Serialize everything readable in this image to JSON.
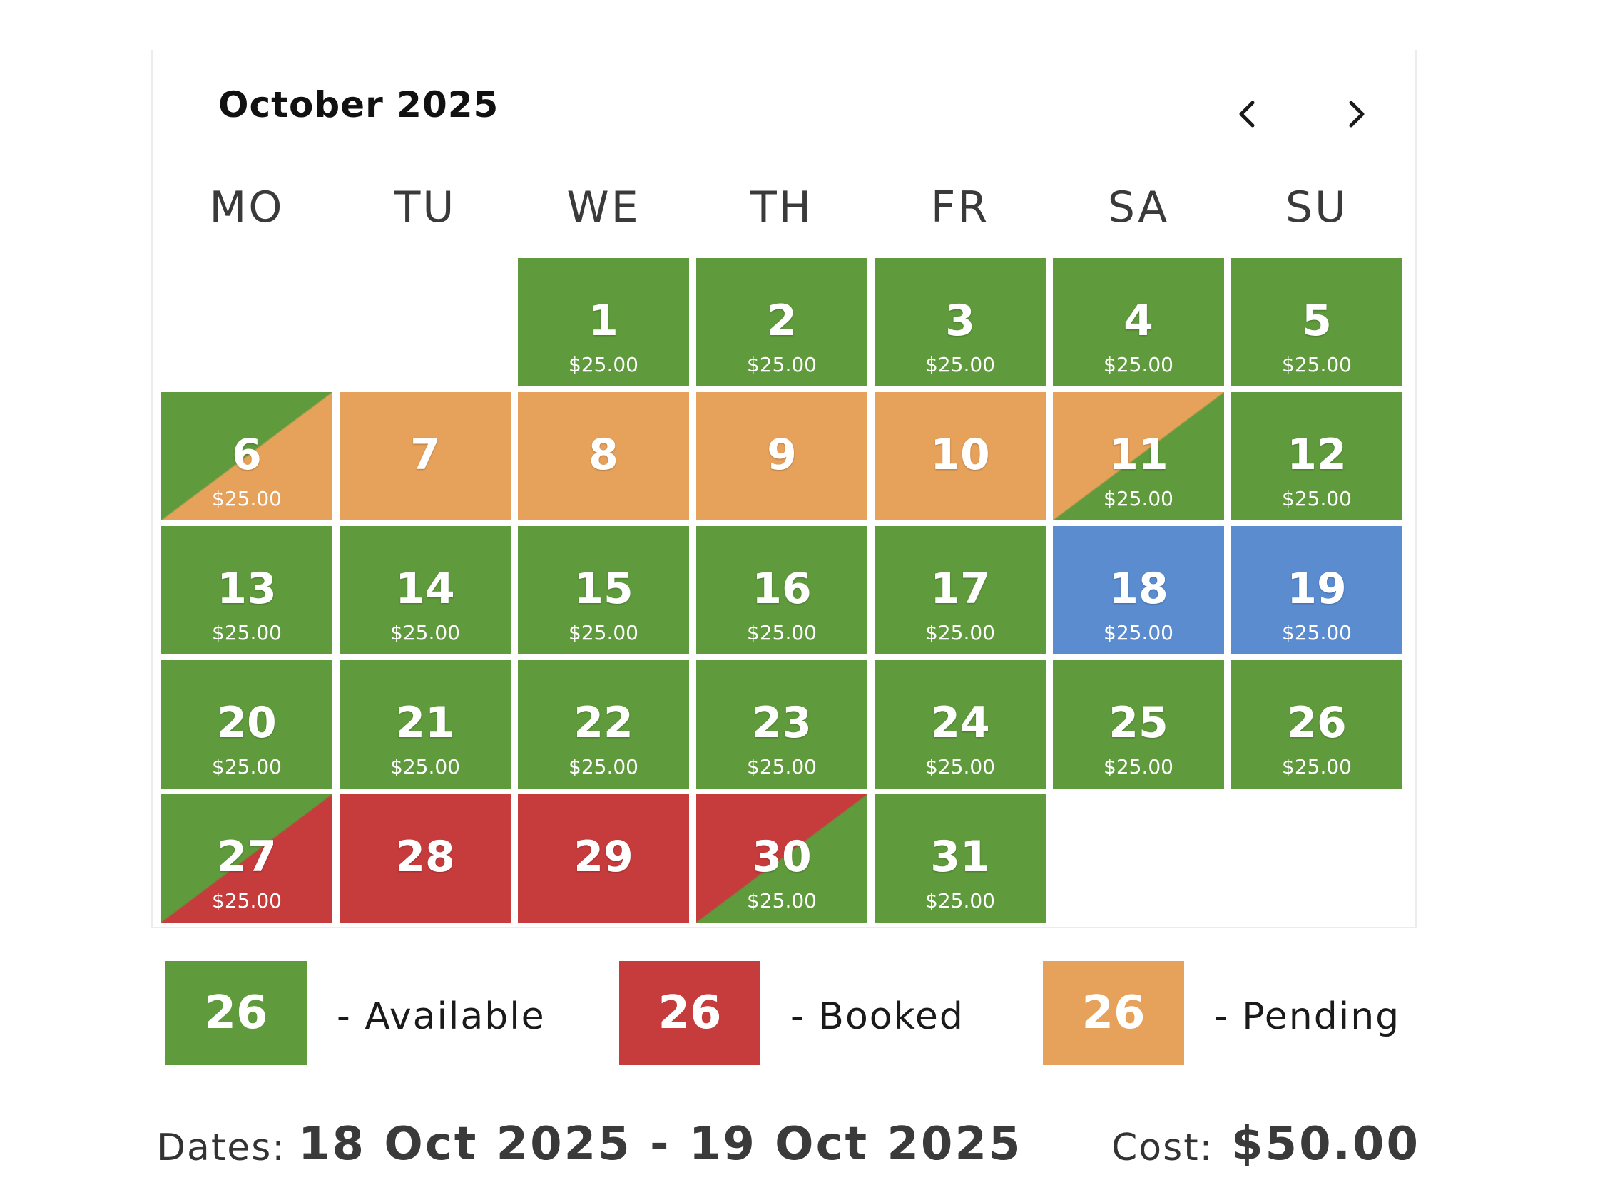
{
  "calendar": {
    "month_title": "October 2025",
    "prev_icon": "chevron-left-icon",
    "next_icon": "chevron-right-icon",
    "weekdays": [
      "MO",
      "TU",
      "WE",
      "TH",
      "FR",
      "SA",
      "SU"
    ]
  },
  "colors": {
    "available": "#5f9a3c",
    "booked": "#c63b3b",
    "pending": "#e6a15a",
    "selected": "#5b8cd0"
  },
  "days": [
    {
      "num": "1",
      "price": "$25.00",
      "status": "available"
    },
    {
      "num": "2",
      "price": "$25.00",
      "status": "available"
    },
    {
      "num": "3",
      "price": "$25.00",
      "status": "available"
    },
    {
      "num": "4",
      "price": "$25.00",
      "status": "available"
    },
    {
      "num": "5",
      "price": "$25.00",
      "status": "available"
    },
    {
      "num": "6",
      "price": "$25.00",
      "status": "available-pending-split"
    },
    {
      "num": "7",
      "price": "",
      "status": "pending"
    },
    {
      "num": "8",
      "price": "",
      "status": "pending"
    },
    {
      "num": "9",
      "price": "",
      "status": "pending"
    },
    {
      "num": "10",
      "price": "",
      "status": "pending"
    },
    {
      "num": "11",
      "price": "$25.00",
      "status": "pending-available-split"
    },
    {
      "num": "12",
      "price": "$25.00",
      "status": "available"
    },
    {
      "num": "13",
      "price": "$25.00",
      "status": "available"
    },
    {
      "num": "14",
      "price": "$25.00",
      "status": "available"
    },
    {
      "num": "15",
      "price": "$25.00",
      "status": "available"
    },
    {
      "num": "16",
      "price": "$25.00",
      "status": "available"
    },
    {
      "num": "17",
      "price": "$25.00",
      "status": "available"
    },
    {
      "num": "18",
      "price": "$25.00",
      "status": "selected"
    },
    {
      "num": "19",
      "price": "$25.00",
      "status": "selected"
    },
    {
      "num": "20",
      "price": "$25.00",
      "status": "available"
    },
    {
      "num": "21",
      "price": "$25.00",
      "status": "available"
    },
    {
      "num": "22",
      "price": "$25.00",
      "status": "available"
    },
    {
      "num": "23",
      "price": "$25.00",
      "status": "available"
    },
    {
      "num": "24",
      "price": "$25.00",
      "status": "available"
    },
    {
      "num": "25",
      "price": "$25.00",
      "status": "available"
    },
    {
      "num": "26",
      "price": "$25.00",
      "status": "available"
    },
    {
      "num": "27",
      "price": "$25.00",
      "status": "available-booked-split"
    },
    {
      "num": "28",
      "price": "",
      "status": "booked"
    },
    {
      "num": "29",
      "price": "",
      "status": "booked"
    },
    {
      "num": "30",
      "price": "$25.00",
      "status": "booked-available-split"
    },
    {
      "num": "31",
      "price": "$25.00",
      "status": "available"
    }
  ],
  "first_weekday_index": 2,
  "legend": {
    "available": {
      "sample": "26",
      "label": "-  Available"
    },
    "booked": {
      "sample": "26",
      "label": "-  Booked"
    },
    "pending": {
      "sample": "26",
      "label": "-  Pending"
    }
  },
  "summary": {
    "dates_label": "Dates:",
    "dates_value": "18 Oct 2025 - 19 Oct 2025",
    "cost_label": "Cost:",
    "cost_value": "$50.00"
  }
}
